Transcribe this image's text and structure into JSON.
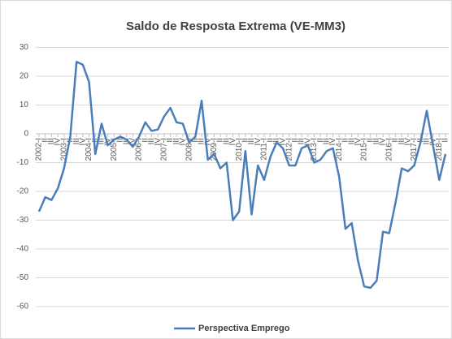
{
  "chart_data": {
    "type": "line",
    "title": "Saldo de Resposta Extrema (VE-MM3)",
    "categories": [
      "2002-I",
      "II",
      "III",
      "IV",
      "2003-I",
      "II",
      "III",
      "IV",
      "2004-I",
      "II",
      "III",
      "IV",
      "2005-I",
      "II",
      "III",
      "IV",
      "2006-I",
      "II",
      "III",
      "IV",
      "2007-I",
      "II",
      "III",
      "IV",
      "2008-I",
      "II",
      "III",
      "IV",
      "2009-I",
      "II",
      "III",
      "IV",
      "2010-I",
      "II",
      "III",
      "IV",
      "2011-I",
      "II",
      "III",
      "IV",
      "2012-I",
      "II",
      "III",
      "IV",
      "2013-I",
      "II",
      "III",
      "IV",
      "2014-I",
      "II",
      "III",
      "IV",
      "2015-I",
      "II",
      "III",
      "IV",
      "2016-I",
      "II",
      "III",
      "IV",
      "2017-I",
      "II",
      "III",
      "IV",
      "2018-I",
      "II"
    ],
    "series": [
      {
        "name": "Perspectiva Emprego",
        "color": "#4a7ebb",
        "values": [
          -27,
          -22,
          -23,
          -19,
          -12,
          -1,
          25,
          24,
          18,
          -7,
          3.5,
          -4,
          -2,
          -1,
          -2,
          -4.5,
          -1,
          4,
          1,
          1.5,
          6,
          9,
          4,
          3.5,
          -3,
          -1,
          11.5,
          -9,
          -7,
          -12,
          -10,
          -30,
          -27,
          -6,
          -28,
          -11,
          -16,
          -8,
          -3,
          -5,
          -11,
          -11,
          -5,
          -4,
          -10,
          -9,
          -6,
          -5,
          -15,
          -33,
          -31,
          -44,
          -53,
          -53.5,
          -51,
          -34,
          -34.5,
          -24,
          -12,
          -13,
          -11,
          -3,
          8,
          -4,
          -16,
          -7
        ]
      }
    ],
    "ylim": [
      -60,
      30
    ],
    "yticks": [
      -60,
      -50,
      -40,
      -30,
      -20,
      -10,
      0,
      10,
      20,
      30
    ],
    "grid": true,
    "legend": "bottom"
  }
}
